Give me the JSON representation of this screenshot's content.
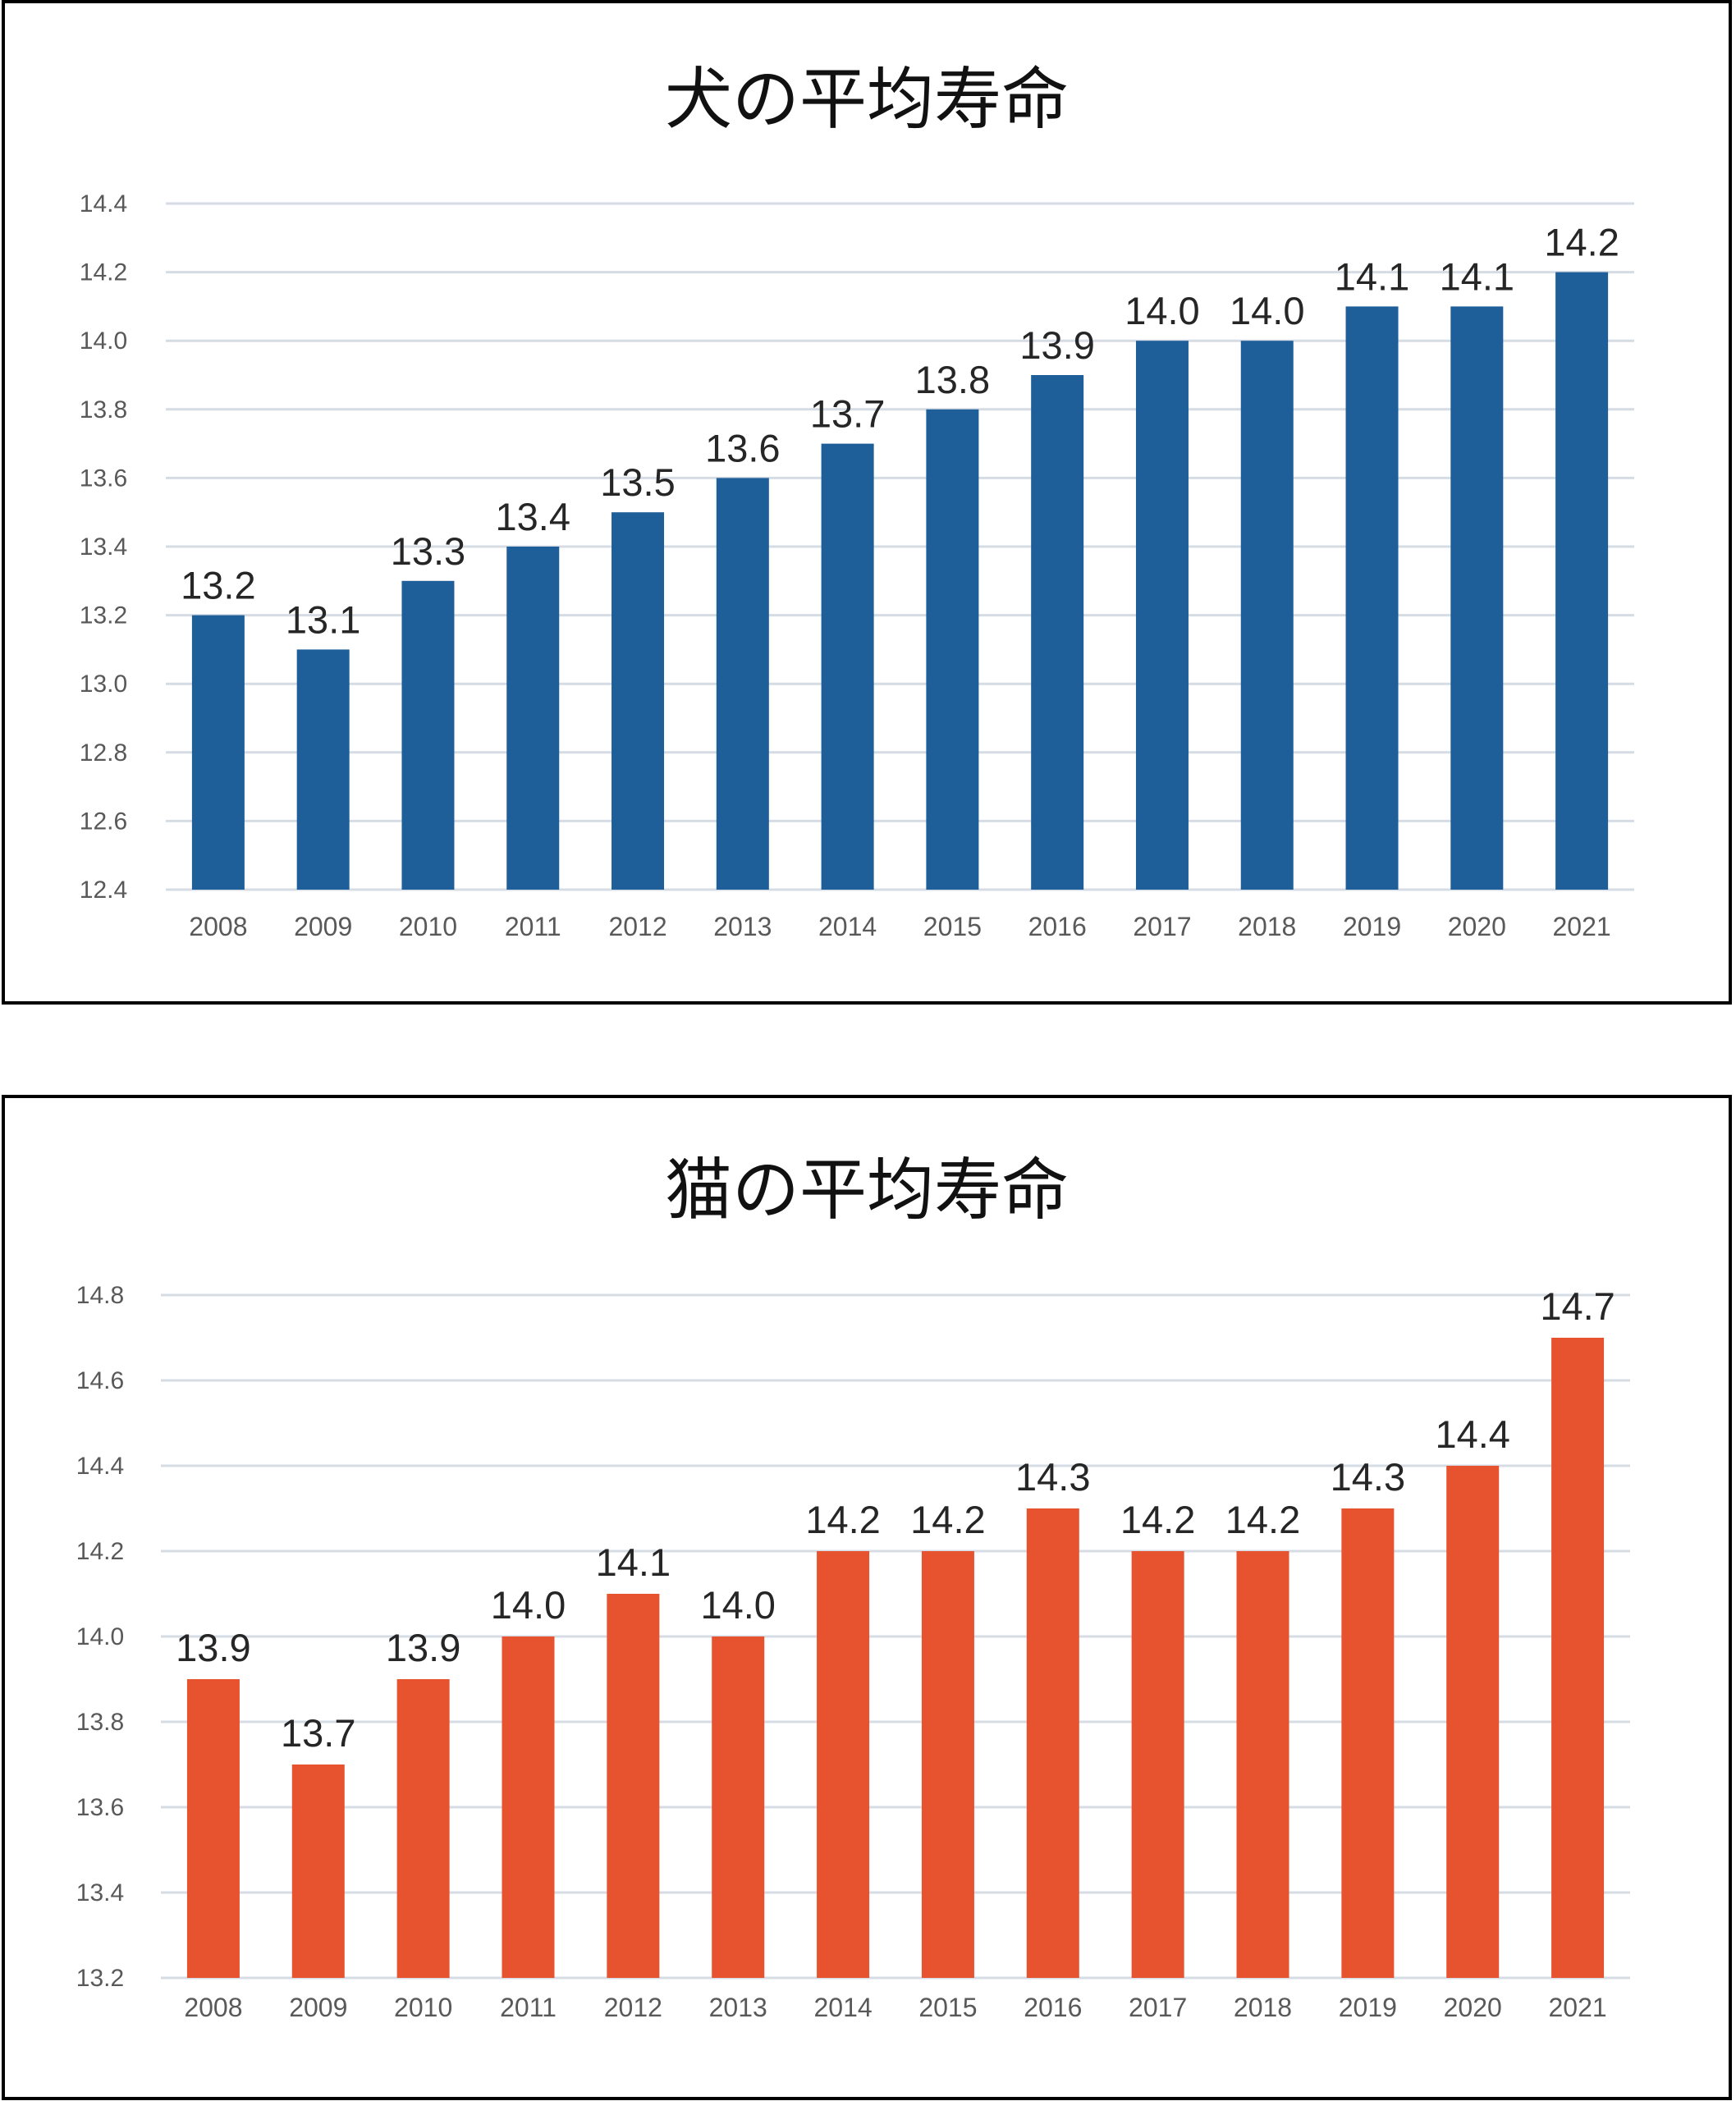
{
  "chart_data": [
    {
      "type": "bar",
      "title": "犬の平均寿命",
      "categories": [
        "2008",
        "2009",
        "2010",
        "2011",
        "2012",
        "2013",
        "2014",
        "2015",
        "2016",
        "2017",
        "2018",
        "2019",
        "2020",
        "2021"
      ],
      "values": [
        13.2,
        13.1,
        13.3,
        13.4,
        13.5,
        13.6,
        13.7,
        13.8,
        13.9,
        14.0,
        14.0,
        14.1,
        14.1,
        14.2
      ],
      "value_labels": [
        "13.2",
        "13.1",
        "13.3",
        "13.4",
        "13.5",
        "13.6",
        "13.7",
        "13.8",
        "13.9",
        "14.0",
        "14.0",
        "14.1",
        "14.1",
        "14.2"
      ],
      "yticks": [
        "12.4",
        "12.6",
        "12.8",
        "13.0",
        "13.2",
        "13.4",
        "13.6",
        "13.8",
        "14.0",
        "14.2",
        "14.4"
      ],
      "ylim": [
        12.4,
        14.4
      ],
      "grid": true,
      "color": "#1f5f99"
    },
    {
      "type": "bar",
      "title": "猫の平均寿命",
      "categories": [
        "2008",
        "2009",
        "2010",
        "2011",
        "2012",
        "2013",
        "2014",
        "2015",
        "2016",
        "2017",
        "2018",
        "2019",
        "2020",
        "2021"
      ],
      "values": [
        13.9,
        13.7,
        13.9,
        14.0,
        14.1,
        14.0,
        14.2,
        14.2,
        14.3,
        14.2,
        14.2,
        14.3,
        14.4,
        14.7
      ],
      "value_labels": [
        "13.9",
        "13.7",
        "13.9",
        "14.0",
        "14.1",
        "14.0",
        "14.2",
        "14.2",
        "14.3",
        "14.2",
        "14.2",
        "14.3",
        "14.4",
        "14.7"
      ],
      "yticks": [
        "13.2",
        "13.4",
        "13.6",
        "13.8",
        "14.0",
        "14.2",
        "14.4",
        "14.6",
        "14.8"
      ],
      "ylim": [
        13.2,
        14.8
      ],
      "grid": true,
      "color": "#e8532f"
    }
  ]
}
